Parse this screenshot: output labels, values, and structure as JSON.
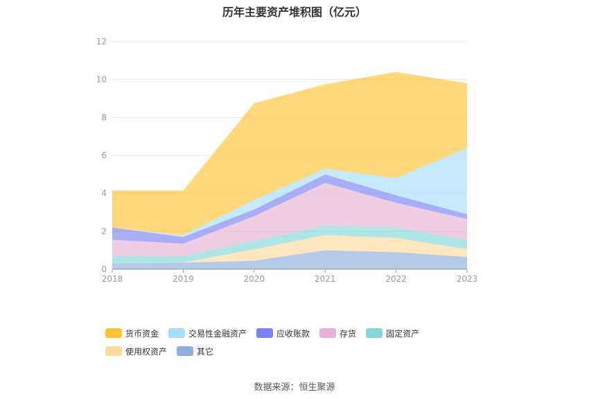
{
  "title": "历年主要资产堆积图（亿元）",
  "source_text": "数据来源：恒生聚源",
  "chart_data": {
    "type": "area",
    "stacked": true,
    "x": [
      "2018",
      "2019",
      "2020",
      "2021",
      "2022",
      "2023"
    ],
    "ylim": [
      0,
      12
    ],
    "yticks": [
      "0",
      "2",
      "4",
      "6",
      "8",
      "10",
      "12"
    ],
    "grid": true,
    "legend_position": "bottom",
    "series": [
      {
        "name": "其它",
        "color": "#8eaedc",
        "values": [
          0.3,
          0.35,
          0.45,
          1.0,
          0.9,
          0.65
        ]
      },
      {
        "name": "使用权资产",
        "color": "#fdd99b",
        "values": [
          0.0,
          0.0,
          0.6,
          0.8,
          0.75,
          0.4
        ]
      },
      {
        "name": "固定资产",
        "color": "#86d8d8",
        "values": [
          0.4,
          0.35,
          0.45,
          0.5,
          0.55,
          0.5
        ]
      },
      {
        "name": "存货",
        "color": "#e6b3d6",
        "values": [
          0.85,
          0.65,
          1.3,
          2.25,
          1.3,
          1.1
        ]
      },
      {
        "name": "应收账款",
        "color": "#7b82f2",
        "values": [
          0.65,
          0.35,
          0.35,
          0.45,
          0.4,
          0.25
        ]
      },
      {
        "name": "交易性金融资产",
        "color": "#a6defa",
        "values": [
          0.0,
          0.1,
          0.5,
          0.3,
          0.9,
          3.5
        ]
      },
      {
        "name": "货币资金",
        "color": "#fec334",
        "values": [
          1.95,
          2.35,
          5.1,
          4.45,
          5.6,
          3.4
        ]
      }
    ]
  }
}
